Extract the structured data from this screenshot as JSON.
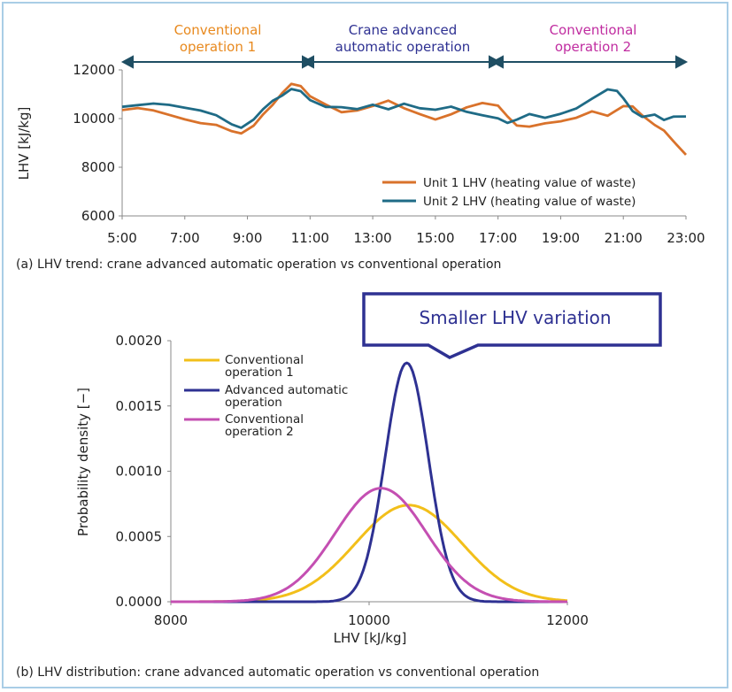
{
  "chart_data": [
    {
      "type": "line",
      "period_labels": [
        {
          "lines": [
            "Conventional",
            "operation 1"
          ],
          "color": "#e8891e"
        },
        {
          "lines": [
            "Crane advanced",
            "automatic operation"
          ],
          "color": "#2e3192"
        },
        {
          "lines": [
            "Conventional",
            "operation 2"
          ],
          "color": "#c02ca0"
        }
      ],
      "ylabel": "LHV [kJ/kg]",
      "yticks": [
        "12000",
        "10000",
        "8000",
        "6000"
      ],
      "ylim": [
        6000,
        12000
      ],
      "xticks": [
        "5:00",
        "7:00",
        "9:00",
        "11:00",
        "13:00",
        "15:00",
        "17:00",
        "19:00",
        "21:00",
        "23:00"
      ],
      "xlim": [
        5,
        23
      ],
      "series": [
        {
          "name": "Unit  1 LHV (heating value of waste)",
          "color": "#d9722b",
          "points": [
            [
              5.0,
              10350
            ],
            [
              5.5,
              10400
            ],
            [
              6.0,
              10300
            ],
            [
              6.5,
              10150
            ],
            [
              7.0,
              10000
            ],
            [
              7.5,
              9850
            ],
            [
              8.0,
              9750
            ],
            [
              8.5,
              9450
            ],
            [
              8.8,
              9350
            ],
            [
              9.2,
              9700
            ],
            [
              9.5,
              10200
            ],
            [
              9.8,
              10600
            ],
            [
              10.1,
              11050
            ],
            [
              10.4,
              11400
            ],
            [
              10.7,
              11300
            ],
            [
              11.0,
              10900
            ],
            [
              11.5,
              10600
            ],
            [
              12.0,
              10300
            ],
            [
              12.5,
              10350
            ],
            [
              13.0,
              10500
            ],
            [
              13.5,
              10700
            ],
            [
              14.0,
              10400
            ],
            [
              14.5,
              10200
            ],
            [
              15.0,
              10000
            ],
            [
              15.5,
              10200
            ],
            [
              16.0,
              10450
            ],
            [
              16.5,
              10600
            ],
            [
              17.0,
              10500
            ],
            [
              17.3,
              10100
            ],
            [
              17.6,
              9750
            ],
            [
              18.0,
              9700
            ],
            [
              18.5,
              9800
            ],
            [
              19.0,
              9850
            ],
            [
              19.5,
              10000
            ],
            [
              20.0,
              10300
            ],
            [
              20.5,
              10150
            ],
            [
              21.0,
              10550
            ],
            [
              21.3,
              10500
            ],
            [
              21.6,
              10100
            ],
            [
              22.0,
              9700
            ],
            [
              22.3,
              9500
            ],
            [
              22.6,
              9100
            ],
            [
              23.0,
              8550
            ]
          ]
        },
        {
          "name": "Unit  2 LHV (heating value of waste)",
          "color": "#1f6b86",
          "points": [
            [
              5.0,
              10450
            ],
            [
              5.5,
              10550
            ],
            [
              6.0,
              10650
            ],
            [
              6.5,
              10600
            ],
            [
              7.0,
              10450
            ],
            [
              7.5,
              10300
            ],
            [
              8.0,
              10100
            ],
            [
              8.5,
              9750
            ],
            [
              8.8,
              9650
            ],
            [
              9.2,
              10000
            ],
            [
              9.5,
              10400
            ],
            [
              9.8,
              10700
            ],
            [
              10.1,
              10900
            ],
            [
              10.4,
              11200
            ],
            [
              10.7,
              11150
            ],
            [
              11.0,
              10800
            ],
            [
              11.5,
              10500
            ],
            [
              12.0,
              10450
            ],
            [
              12.5,
              10350
            ],
            [
              13.0,
              10550
            ],
            [
              13.5,
              10400
            ],
            [
              14.0,
              10650
            ],
            [
              14.5,
              10450
            ],
            [
              15.0,
              10350
            ],
            [
              15.5,
              10450
            ],
            [
              16.0,
              10250
            ],
            [
              16.5,
              10150
            ],
            [
              17.0,
              10050
            ],
            [
              17.3,
              9850
            ],
            [
              17.6,
              9950
            ],
            [
              18.0,
              10150
            ],
            [
              18.5,
              10000
            ],
            [
              19.0,
              10200
            ],
            [
              19.5,
              10450
            ],
            [
              20.0,
              10850
            ],
            [
              20.5,
              11200
            ],
            [
              20.8,
              11100
            ],
            [
              21.0,
              10800
            ],
            [
              21.3,
              10300
            ],
            [
              21.6,
              10100
            ],
            [
              22.0,
              10200
            ],
            [
              22.3,
              9950
            ],
            [
              22.6,
              10050
            ],
            [
              23.0,
              10050
            ]
          ]
        }
      ],
      "caption": "(a) LHV trend: crane advanced automatic operation vs conventional operation"
    },
    {
      "type": "line",
      "callout": "Smaller LHV variation",
      "ylabel": "Probability density [−]",
      "xlabel": "LHV [kJ/kg]",
      "yticks": [
        "0.0020",
        "0.0015",
        "0.0010",
        "0.0005",
        "0.0000"
      ],
      "ylim": [
        0,
        0.002
      ],
      "xticks": [
        "8000",
        "10000",
        "12000"
      ],
      "xlim": [
        8000,
        12000
      ],
      "series": [
        {
          "name": "Conventional operation 1",
          "legend_lines": [
            "Conventional",
            "operation 1"
          ],
          "color": "#f2bf1a",
          "mean": 10400,
          "sd": 536,
          "peak": 0.00074
        },
        {
          "name": "Advanced automatic operation",
          "legend_lines": [
            "Advanced automatic",
            "operation"
          ],
          "color": "#2e3192",
          "mean": 10380,
          "sd": 218,
          "peak": 0.00183
        },
        {
          "name": "Conventional operation 2",
          "legend_lines": [
            "Conventional",
            "operation 2"
          ],
          "color": "#c44fb2",
          "mean": 10120,
          "sd": 460,
          "peak": 0.00087
        }
      ],
      "caption": "(b) LHV distribution: crane advanced automatic operation vs conventional operation"
    }
  ]
}
